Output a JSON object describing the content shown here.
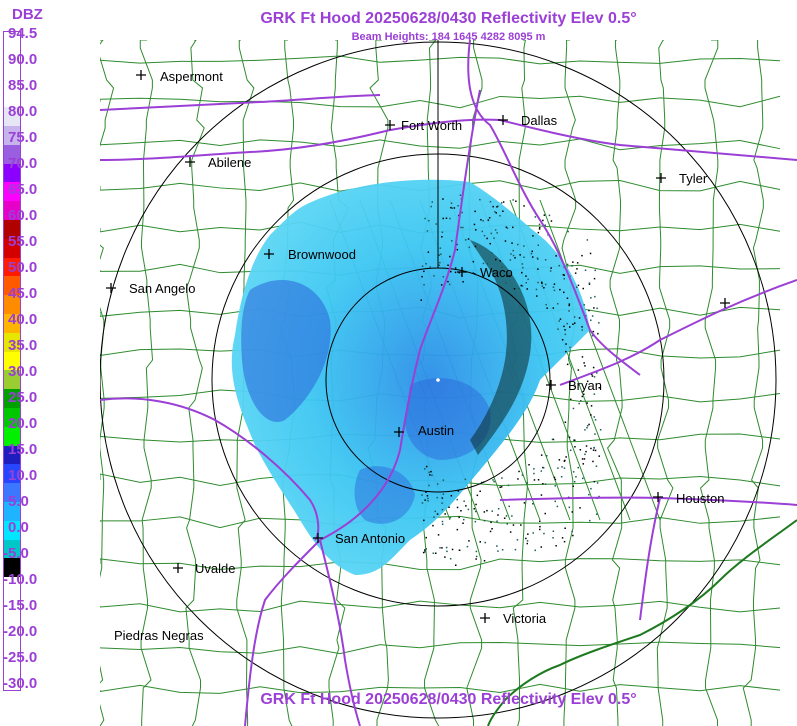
{
  "header": {
    "title": "GRK Ft Hood 20250628/0430 Reflectivity Elev 0.5°",
    "subtitle": "Beam Heights: 184 1645 4282 8095 m"
  },
  "footer": {
    "title": "GRK Ft Hood 20250628/0430 Reflectivity Elev 0.5°"
  },
  "legend": {
    "unit": "DBZ",
    "labels": [
      "94.5",
      "90.0",
      "85.0",
      "80.0",
      "75.0",
      "70.0",
      "65.0",
      "60.0",
      "55.0",
      "50.0",
      "45.0",
      "40.0",
      "35.0",
      "30.0",
      "25.0",
      "20.0",
      "15.0",
      "10.0",
      "5.0",
      "0.0",
      "-5.0",
      "-10.0",
      "-15.0",
      "-20.0",
      "-25.0",
      "-30.0"
    ],
    "colors": [
      "#ffffff",
      "#ffffff",
      "#ffffff",
      "#ffffff",
      "#e6e6f5",
      "#c8b4ec",
      "#9a5ee0",
      "#8b00ff",
      "#ff00ff",
      "#e600c8",
      "#b00000",
      "#d40000",
      "#ff1a00",
      "#ff5a00",
      "#ff8c00",
      "#ffb400",
      "#e6e600",
      "#ffff00",
      "#9acd32",
      "#00a000",
      "#00c800",
      "#00f000",
      "#1e1ebe",
      "#2846ff",
      "#3c78ff",
      "#1eb4ff",
      "#00e6ff",
      "#00c8c8",
      "#000000",
      "#ffffff",
      "#ffffff",
      "#ffffff",
      "#ffffff",
      "#ffffff",
      "#ffffff"
    ]
  },
  "map": {
    "colors": {
      "county": "#2e8b2e",
      "highway": "#9b3fd6",
      "ring": "#000000",
      "echo_light": "#3fd0f0",
      "echo_mid": "#2aa6e6",
      "echo_dark": "#1f5fd8"
    },
    "cities": [
      {
        "id": "aspermont",
        "name": "Aspermont"
      },
      {
        "id": "fort-worth",
        "name": "Fort Worth"
      },
      {
        "id": "dallas",
        "name": "Dallas"
      },
      {
        "id": "abilene",
        "name": "Abilene"
      },
      {
        "id": "tyler",
        "name": "Tyler"
      },
      {
        "id": "brownwood",
        "name": "Brownwood"
      },
      {
        "id": "waco",
        "name": "Waco"
      },
      {
        "id": "san-angelo",
        "name": "San Angelo"
      },
      {
        "id": "bryan",
        "name": "Bryan"
      },
      {
        "id": "austin",
        "name": "Austin"
      },
      {
        "id": "houston",
        "name": "Houston"
      },
      {
        "id": "san-antonio",
        "name": "San Antonio"
      },
      {
        "id": "uvalde",
        "name": "Uvalde"
      },
      {
        "id": "victoria",
        "name": "Victoria"
      },
      {
        "id": "piedras-negras",
        "name": "Piedras Negras"
      },
      {
        "id": "unnamed-east",
        "name": ""
      }
    ]
  }
}
